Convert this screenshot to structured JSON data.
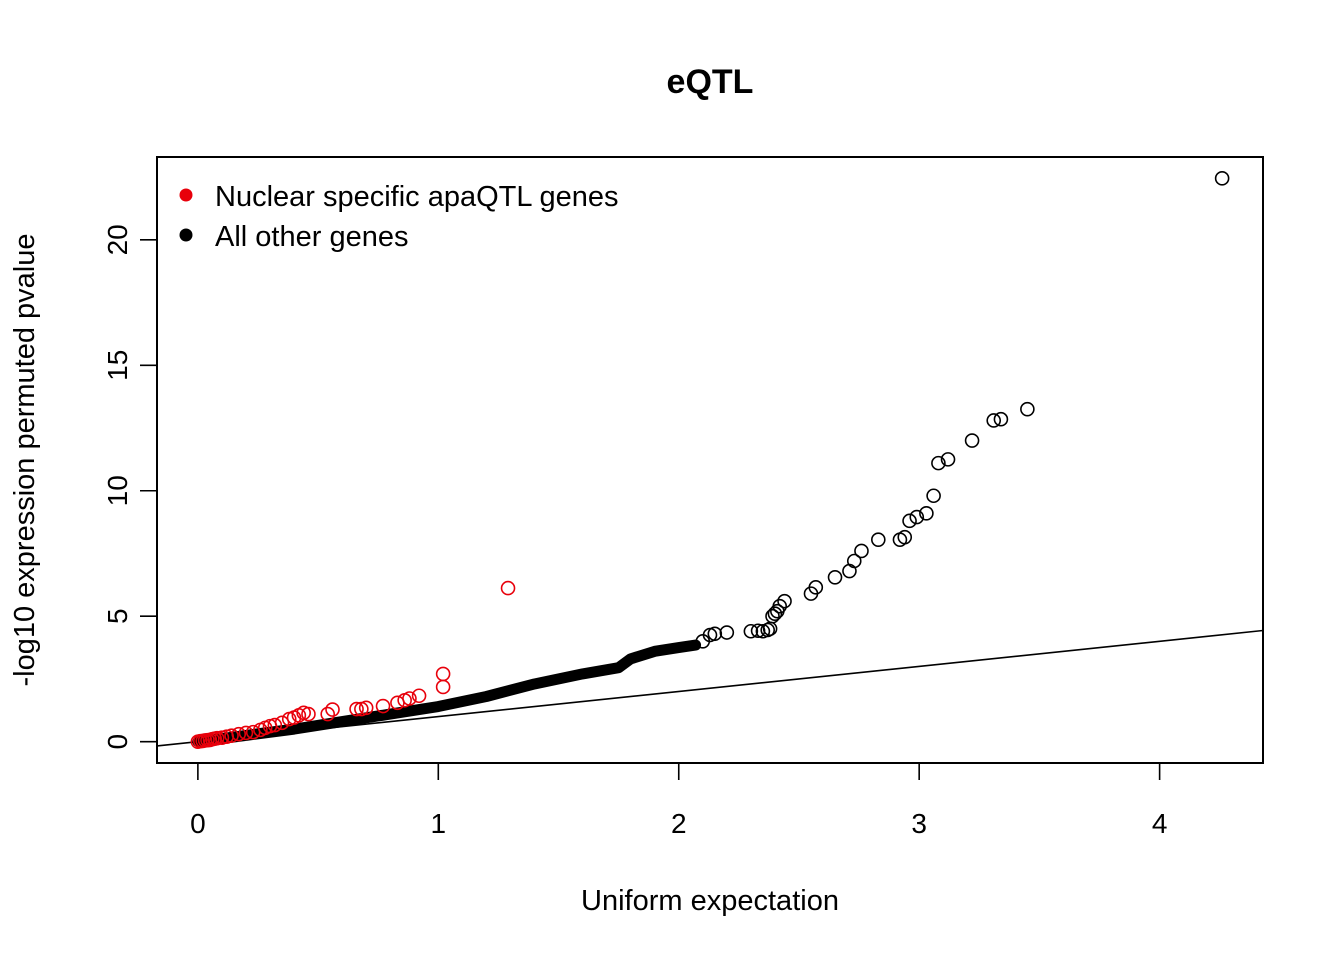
{
  "chart_data": {
    "type": "scatter",
    "title": "eQTL",
    "xlabel": "Uniform expectation",
    "ylabel": "-log10 expression permuted pvalue",
    "xlim": [
      -0.17,
      4.43
    ],
    "ylim": [
      -0.85,
      23.3
    ],
    "x_ticks": [
      0,
      1,
      2,
      3,
      4
    ],
    "x_tick_labels": [
      "0",
      "1",
      "2",
      "3",
      "4"
    ],
    "y_ticks": [
      0,
      5,
      10,
      15,
      20
    ],
    "y_tick_labels": [
      "0",
      "5",
      "10",
      "15",
      "20"
    ],
    "reference_line": {
      "intercept": 0,
      "slope": 1,
      "label": "y = x"
    },
    "legend": {
      "position": "top-left",
      "entries": [
        {
          "label": "Nuclear specific apaQTL genes",
          "color": "#e8000b"
        },
        {
          "label": "All other genes",
          "color": "#000000"
        }
      ]
    },
    "series": [
      {
        "name": "All other genes",
        "color": "#000000",
        "dense_curve": [
          [
            0,
            0
          ],
          [
            0.2,
            0.25
          ],
          [
            0.4,
            0.5
          ],
          [
            0.6,
            0.8
          ],
          [
            0.8,
            1.1
          ],
          [
            1.0,
            1.4
          ],
          [
            1.2,
            1.8
          ],
          [
            1.4,
            2.3
          ],
          [
            1.6,
            2.7
          ],
          [
            1.75,
            2.95
          ],
          [
            1.8,
            3.3
          ],
          [
            1.9,
            3.6
          ],
          [
            2.0,
            3.75
          ],
          [
            2.07,
            3.85
          ]
        ],
        "points": [
          [
            2.1,
            4.0
          ],
          [
            2.13,
            4.25
          ],
          [
            2.15,
            4.3
          ],
          [
            2.2,
            4.35
          ],
          [
            2.3,
            4.4
          ],
          [
            2.33,
            4.42
          ],
          [
            2.35,
            4.4
          ],
          [
            2.37,
            4.45
          ],
          [
            2.38,
            4.5
          ],
          [
            2.39,
            5.0
          ],
          [
            2.4,
            5.1
          ],
          [
            2.41,
            5.2
          ],
          [
            2.42,
            5.4
          ],
          [
            2.44,
            5.6
          ],
          [
            2.55,
            5.9
          ],
          [
            2.57,
            6.15
          ],
          [
            2.65,
            6.55
          ],
          [
            2.71,
            6.8
          ],
          [
            2.73,
            7.2
          ],
          [
            2.76,
            7.6
          ],
          [
            2.83,
            8.05
          ],
          [
            2.92,
            8.05
          ],
          [
            2.94,
            8.15
          ],
          [
            2.96,
            8.8
          ],
          [
            2.99,
            8.95
          ],
          [
            3.03,
            9.1
          ],
          [
            3.06,
            9.8
          ],
          [
            3.08,
            11.1
          ],
          [
            3.12,
            11.25
          ],
          [
            3.22,
            12.0
          ],
          [
            3.31,
            12.8
          ],
          [
            3.34,
            12.85
          ],
          [
            3.45,
            13.25
          ],
          [
            4.26,
            22.45
          ]
        ]
      },
      {
        "name": "Nuclear specific apaQTL genes",
        "color": "#e8000b",
        "points": [
          [
            0.0,
            0.0
          ],
          [
            0.01,
            0.02
          ],
          [
            0.02,
            0.03
          ],
          [
            0.03,
            0.05
          ],
          [
            0.04,
            0.06
          ],
          [
            0.05,
            0.07
          ],
          [
            0.06,
            0.1
          ],
          [
            0.07,
            0.12
          ],
          [
            0.08,
            0.14
          ],
          [
            0.1,
            0.16
          ],
          [
            0.12,
            0.2
          ],
          [
            0.14,
            0.24
          ],
          [
            0.17,
            0.3
          ],
          [
            0.2,
            0.35
          ],
          [
            0.23,
            0.38
          ],
          [
            0.26,
            0.47
          ],
          [
            0.28,
            0.55
          ],
          [
            0.3,
            0.62
          ],
          [
            0.32,
            0.66
          ],
          [
            0.35,
            0.75
          ],
          [
            0.38,
            0.9
          ],
          [
            0.4,
            0.96
          ],
          [
            0.42,
            1.05
          ],
          [
            0.44,
            1.15
          ],
          [
            0.46,
            1.1
          ],
          [
            0.54,
            1.1
          ],
          [
            0.56,
            1.28
          ],
          [
            0.66,
            1.3
          ],
          [
            0.68,
            1.3
          ],
          [
            0.7,
            1.35
          ],
          [
            0.77,
            1.42
          ],
          [
            0.83,
            1.55
          ],
          [
            0.86,
            1.65
          ],
          [
            0.88,
            1.72
          ],
          [
            0.92,
            1.83
          ],
          [
            1.02,
            2.18
          ],
          [
            1.02,
            2.7
          ],
          [
            1.29,
            6.12
          ]
        ]
      }
    ]
  }
}
